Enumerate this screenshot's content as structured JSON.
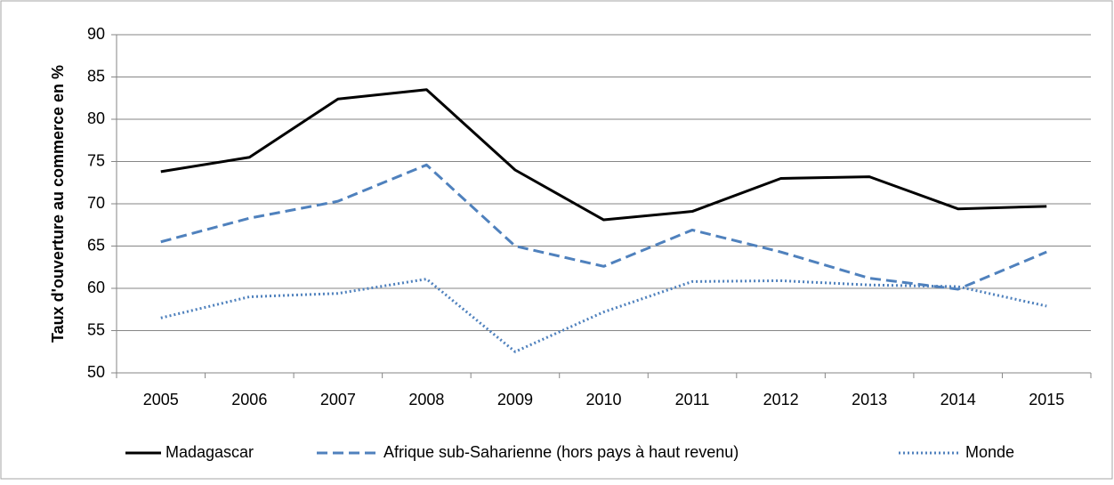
{
  "chart_data": {
    "type": "line",
    "ylabel": "Taux d'ouverture au commerce en %",
    "categories": [
      "2005",
      "2006",
      "2007",
      "2008",
      "2009",
      "2010",
      "2011",
      "2012",
      "2013",
      "2014",
      "2015"
    ],
    "series": [
      {
        "name": "Madagascar",
        "color": "#000000",
        "line_style": "solid",
        "values": [
          73.8,
          75.5,
          82.4,
          83.5,
          74.0,
          68.1,
          69.1,
          73.0,
          73.2,
          69.4,
          69.7
        ]
      },
      {
        "name": "Afrique sub-Saharienne (hors pays à haut revenu)",
        "color": "#4f81bd",
        "line_style": "dashed",
        "values": [
          65.5,
          68.3,
          70.3,
          74.6,
          65.0,
          62.6,
          66.9,
          64.3,
          61.2,
          59.9,
          64.3
        ]
      },
      {
        "name": "Monde",
        "color": "#4f81bd",
        "line_style": "dotted",
        "values": [
          56.5,
          59.0,
          59.4,
          61.1,
          52.5,
          57.2,
          60.8,
          60.9,
          60.4,
          60.2,
          57.9
        ]
      }
    ],
    "ylim": [
      50,
      90
    ],
    "yticks": [
      50,
      55,
      60,
      65,
      70,
      75,
      80,
      85,
      90
    ],
    "grid": true,
    "legend": "bottom"
  }
}
